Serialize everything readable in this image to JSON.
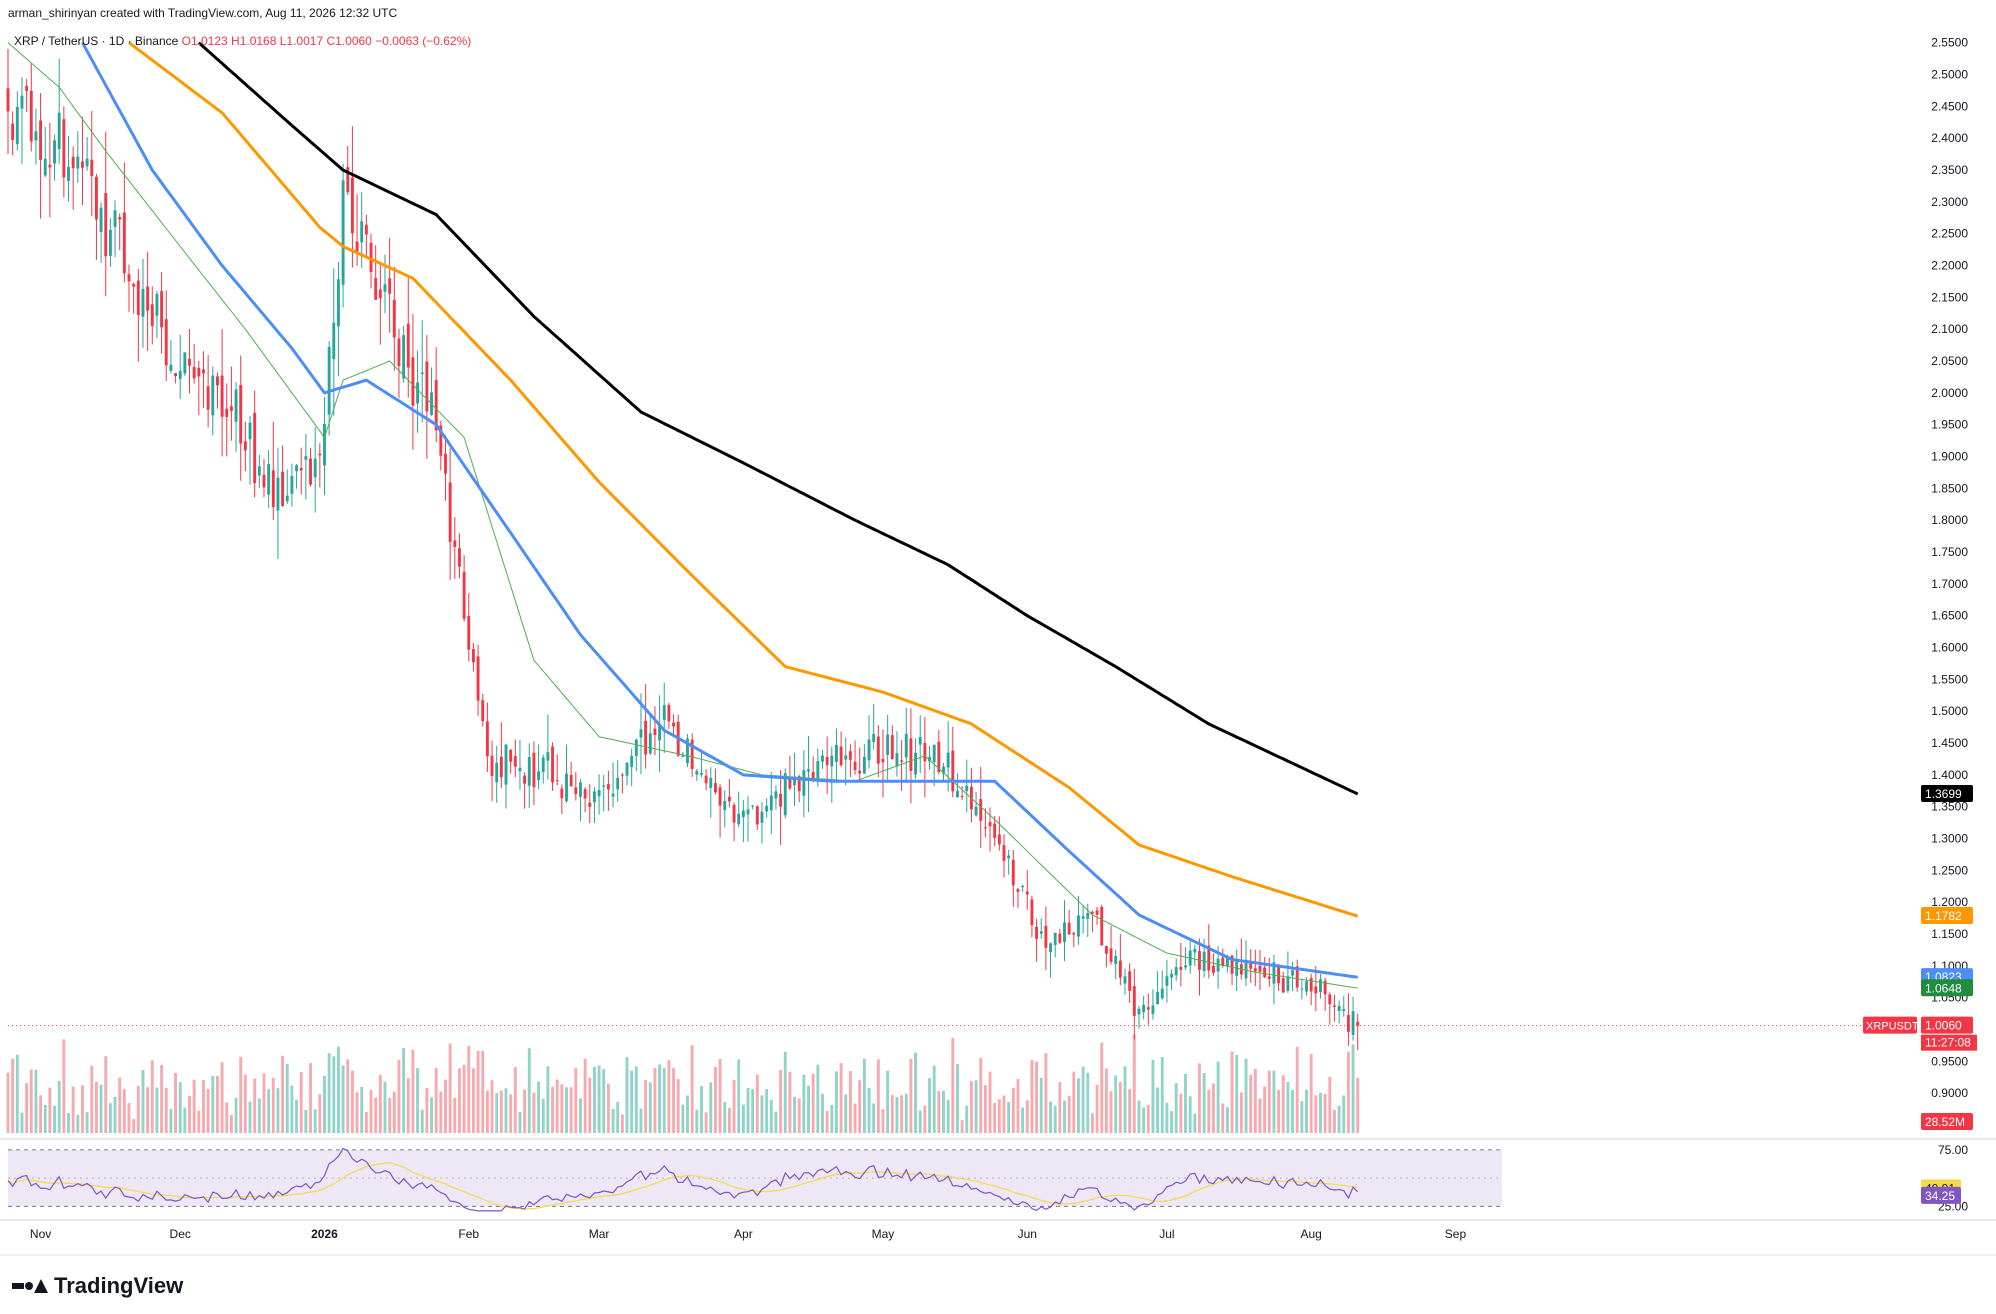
{
  "header": {
    "credit": "arman_shirinyan created with TradingView.com, Aug 11, 2026 12:32 UTC",
    "symbol": "XRP / TetherUS · 1D · Binance",
    "open": "O1.0123",
    "high": "H1.0168",
    "low": "L1.0017",
    "close": "C1.0060",
    "change": "−0.0063 (−0.62%)"
  },
  "brand": {
    "name": "TradingView",
    "icon": "tradingview-logo-icon"
  },
  "colors": {
    "up": "#26a69a",
    "down": "#f23645",
    "up_vol": "#8fd3c9",
    "down_vol": "#f7a9ad",
    "ma20": "#4caf50",
    "ma50": "#4c8df6",
    "ma100": "#ff9800",
    "ma200": "#000000",
    "rsi": "#7e57c2",
    "rsi_ma": "#f5d94a",
    "rsi_band": "#ede7f6"
  },
  "chart_data": {
    "type": "candlestick",
    "symbol": "XRPUSDT",
    "interval": "1D",
    "grid": false,
    "x_ticks": [
      {
        "label": "Nov",
        "date": "2025-11-01"
      },
      {
        "label": "Dec",
        "date": "2025-12-01"
      },
      {
        "label": "2026",
        "date": "2026-01-01"
      },
      {
        "label": "Feb",
        "date": "2026-02-01"
      },
      {
        "label": "Mar",
        "date": "2026-03-01"
      },
      {
        "label": "Apr",
        "date": "2026-04-01"
      },
      {
        "label": "May",
        "date": "2026-05-01"
      },
      {
        "label": "Jun",
        "date": "2026-06-01"
      },
      {
        "label": "Jul",
        "date": "2026-07-01"
      },
      {
        "label": "Aug",
        "date": "2026-08-01"
      },
      {
        "label": "Sep",
        "date": "2026-09-01"
      }
    ],
    "price_axis": {
      "ylim": [
        0.85,
        2.57
      ],
      "ticks": [
        "2.5500",
        "2.5000",
        "2.4500",
        "2.4000",
        "2.3500",
        "2.3000",
        "2.2500",
        "2.2000",
        "2.1500",
        "2.1000",
        "2.0500",
        "2.0000",
        "1.9500",
        "1.9000",
        "1.8500",
        "1.8000",
        "1.7500",
        "1.7000",
        "1.6500",
        "1.6000",
        "1.5500",
        "1.5000",
        "1.4500",
        "1.4000",
        "1.3500",
        "1.3000",
        "1.2500",
        "1.2000",
        "1.1500",
        "1.1000",
        "1.0500",
        "1.0000",
        "0.9500",
        "0.9000"
      ]
    },
    "price_closes_approx": {
      "dates": [
        "2025-10-25",
        "2025-11-01",
        "2025-11-10",
        "2025-11-20",
        "2025-12-01",
        "2025-12-10",
        "2025-12-20",
        "2025-12-31",
        "2026-01-05",
        "2026-01-15",
        "2026-01-25",
        "2026-02-05",
        "2026-02-15",
        "2026-03-01",
        "2026-03-15",
        "2026-04-01",
        "2026-04-15",
        "2026-05-01",
        "2026-05-12",
        "2026-05-25",
        "2026-06-05",
        "2026-06-15",
        "2026-06-25",
        "2026-07-05",
        "2026-07-20",
        "2026-08-01",
        "2026-08-11"
      ],
      "values": [
        2.44,
        2.4,
        2.35,
        2.2,
        2.05,
        2.01,
        1.85,
        1.87,
        2.31,
        2.12,
        1.95,
        1.42,
        1.41,
        1.36,
        1.48,
        1.32,
        1.41,
        1.45,
        1.43,
        1.32,
        1.12,
        1.18,
        1.02,
        1.11,
        1.1,
        1.07,
        1.006
      ]
    },
    "moving_averages": [
      {
        "name": "MA20",
        "color": "#4caf50",
        "last": 1.0648,
        "dates": [
          "2025-10-25",
          "2025-11-05",
          "2025-11-15",
          "2025-12-01",
          "2025-12-15",
          "2026-01-01",
          "2026-01-05",
          "2026-01-15",
          "2026-01-31",
          "2026-02-15",
          "2026-03-01",
          "2026-03-20",
          "2026-04-05",
          "2026-04-25",
          "2026-05-10",
          "2026-05-25",
          "2026-06-15",
          "2026-07-01",
          "2026-07-20",
          "2026-08-11"
        ],
        "values": [
          2.55,
          2.48,
          2.38,
          2.23,
          2.1,
          1.93,
          2.02,
          2.05,
          1.93,
          1.58,
          1.46,
          1.43,
          1.4,
          1.39,
          1.43,
          1.33,
          1.18,
          1.12,
          1.09,
          1.065
        ]
      },
      {
        "name": "MA50",
        "color": "#4c8df6",
        "last": 1.0823,
        "dates": [
          "2025-11-10",
          "2025-11-25",
          "2025-12-10",
          "2025-12-25",
          "2026-01-01",
          "2026-01-10",
          "2026-01-25",
          "2026-02-10",
          "2026-02-25",
          "2026-03-15",
          "2026-04-01",
          "2026-04-20",
          "2026-05-10",
          "2026-05-25",
          "2026-06-10",
          "2026-06-25",
          "2026-07-15",
          "2026-08-11"
        ],
        "values": [
          2.55,
          2.35,
          2.2,
          2.07,
          2.0,
          2.02,
          1.95,
          1.78,
          1.62,
          1.47,
          1.4,
          1.39,
          1.39,
          1.39,
          1.28,
          1.18,
          1.11,
          1.082
        ]
      },
      {
        "name": "MA100",
        "color": "#ff9800",
        "last": 1.1782,
        "dates": [
          "2025-11-20",
          "2025-12-10",
          "2025-12-31",
          "2026-01-05",
          "2026-01-20",
          "2026-02-10",
          "2026-03-01",
          "2026-03-20",
          "2026-04-10",
          "2026-05-01",
          "2026-05-20",
          "2026-06-10",
          "2026-06-25",
          "2026-07-15",
          "2026-08-11"
        ],
        "values": [
          2.55,
          2.44,
          2.26,
          2.23,
          2.18,
          2.02,
          1.86,
          1.72,
          1.57,
          1.53,
          1.48,
          1.38,
          1.29,
          1.24,
          1.178
        ]
      },
      {
        "name": "MA200",
        "color": "#000000",
        "last": 1.3699,
        "dates": [
          "2025-12-05",
          "2025-12-25",
          "2026-01-05",
          "2026-01-25",
          "2026-02-15",
          "2026-03-10",
          "2026-04-01",
          "2026-04-25",
          "2026-05-15",
          "2026-06-01",
          "2026-06-20",
          "2026-07-10",
          "2026-08-11"
        ],
        "values": [
          2.55,
          2.42,
          2.35,
          2.28,
          2.12,
          1.97,
          1.89,
          1.8,
          1.73,
          1.65,
          1.57,
          1.48,
          1.37
        ]
      }
    ],
    "price_labels": [
      {
        "text": "1.3699",
        "value": 1.3699,
        "color": "#000000"
      },
      {
        "text": "1.1782",
        "value": 1.1782,
        "color": "#ff9800"
      },
      {
        "text": "1.0823",
        "value": 1.0823,
        "color": "#4c8df6"
      },
      {
        "text": "1.0648",
        "value": 1.0648,
        "color": "#1e8e3e"
      }
    ],
    "last_price": {
      "symbol": "XRPUSDT",
      "value": 1.006,
      "text": "1.0060",
      "countdown": "11:27:08"
    },
    "volume": {
      "last_text": "28.52M",
      "direction": "down"
    },
    "rsi": {
      "levels": [
        "75.00",
        "25.00"
      ],
      "ylim": [
        20,
        82
      ],
      "value_text": "34.25",
      "value": 34.25,
      "ma_text": "40.91",
      "ma_value": 40.91
    }
  }
}
